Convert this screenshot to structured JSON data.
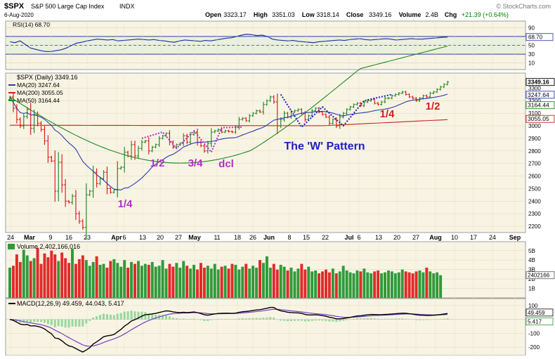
{
  "header": {
    "symbol": "$SPX",
    "name": "S&P 500 Large Cap Index",
    "exchange": "INDX",
    "date": "6-Aug-2020",
    "open_label": "Open",
    "open": "3323.17",
    "high_label": "High",
    "high": "3351.03",
    "low_label": "Low",
    "low": "3318.14",
    "close_label": "Close",
    "close": "3349.16",
    "volume_label": "Volume",
    "volume": "2.4B",
    "chg_label": "Chg",
    "chg": "+21.39 (+0.64%)",
    "watermark": "© StockCharts.com",
    "chg_color": "#008000"
  },
  "colors": {
    "panel_bg": "#f8f4e4",
    "ma20": "#2b3bb0",
    "ma50": "#1f8a1f",
    "ma200": "#d02020",
    "up": "#2e8b2e",
    "down": "#e02020",
    "annot_purple": "#b030c8",
    "annot_red": "#d02020",
    "annot_blue": "#2020c0"
  },
  "chart_data": [
    {
      "type": "line",
      "title": "RSI(14) 68.70",
      "ylim": [
        0,
        100
      ],
      "yticks": [
        90,
        70,
        50,
        30,
        10
      ],
      "reference_lines": [
        70,
        30
      ],
      "current_label": "68.70",
      "series": [
        {
          "name": "RSI(14)",
          "values": [
            58,
            56,
            60,
            52,
            44,
            41,
            38,
            36,
            36,
            38,
            40,
            44,
            50,
            55,
            57,
            60,
            62,
            64,
            63,
            62,
            63,
            60,
            61,
            62,
            63,
            64,
            63,
            62,
            63,
            61,
            60,
            58,
            57,
            60,
            62,
            61,
            60,
            59,
            61,
            60,
            62,
            64,
            66,
            67,
            70,
            73,
            75,
            74,
            72,
            73,
            70,
            64,
            62,
            61,
            60,
            61,
            59,
            58,
            57,
            56,
            58,
            59,
            60,
            61,
            62,
            61,
            63,
            64,
            65,
            63,
            62,
            63,
            64,
            65,
            64,
            62,
            63,
            64,
            65,
            64,
            64,
            65,
            66,
            67,
            68,
            68.7
          ]
        }
      ]
    },
    {
      "type": "line",
      "title": "$SPX (Daily) 3349.16",
      "ylim": [
        2150,
        3420
      ],
      "yticks": [
        3300,
        3200,
        3100,
        3000,
        2900,
        2800,
        2700,
        2600,
        2500,
        2400,
        2300,
        2200
      ],
      "xticks": [
        "24",
        "Mar",
        "9",
        "16",
        "23",
        "Apr",
        "6",
        "13",
        "20",
        "27",
        "May",
        "11",
        "18",
        "26",
        "Jun",
        "8",
        "15",
        "22",
        "Jul",
        "6",
        "13",
        "20",
        "27",
        "Aug",
        "10",
        "17",
        "24",
        "Sep"
      ],
      "close": [
        3230,
        3140,
        3050,
        3000,
        3075,
        3130,
        2980,
        3090,
        3020,
        2970,
        2880,
        2750,
        2720,
        2480,
        2710,
        2530,
        2400,
        2390,
        2440,
        2300,
        2240,
        2190,
        2450,
        2480,
        2630,
        2540,
        2580,
        2630,
        2500,
        2470,
        2490,
        2660,
        2670,
        2790,
        2760,
        2850,
        2760,
        2820,
        2870,
        2880,
        2800,
        2830,
        2850,
        2900,
        2920,
        2940,
        2870,
        2830,
        2850,
        2860,
        2920,
        2870,
        2930,
        2950,
        2870,
        2840,
        2800,
        2860,
        2950,
        2960,
        2970,
        2950,
        2960,
        2955,
        2950,
        2990,
        3050,
        3060,
        3040,
        3080,
        3100,
        3120,
        3110,
        3170,
        3200,
        3230,
        3190,
        3000,
        3050,
        3100,
        3070,
        3110,
        3120,
        3130,
        3100,
        3050,
        3080,
        3120,
        3140,
        3110,
        3090,
        3070,
        3020,
        3050,
        3000,
        3070,
        3100,
        3130,
        3150,
        3170,
        3180,
        3160,
        3190,
        3200,
        3210,
        3180,
        3170,
        3190,
        3220,
        3220,
        3240,
        3250,
        3260,
        3270,
        3250,
        3230,
        3220,
        3200,
        3220,
        3240,
        3230,
        3260,
        3270,
        3290,
        3310,
        3330,
        3349.16
      ],
      "series": [
        {
          "name": "MA(20)",
          "value": "3247.64"
        },
        {
          "name": "MA(200)",
          "value": "3055.05"
        },
        {
          "name": "MA(50)",
          "value": "3164.44"
        }
      ],
      "price_labels": {
        "last": "3349.16",
        "ma20": "3247.64",
        "ma50": "3164.44",
        "ma200": "3055.05"
      },
      "annotations": [
        {
          "text": "1/4",
          "color": "purple"
        },
        {
          "text": "1/2",
          "color": "purple"
        },
        {
          "text": "3/4",
          "color": "purple"
        },
        {
          "text": "dcl",
          "color": "purple"
        },
        {
          "text": "The 'W' Pattern",
          "color": "blue"
        },
        {
          "text": "1/4",
          "color": "red"
        },
        {
          "text": "1/2",
          "color": "red"
        }
      ]
    },
    {
      "type": "bar",
      "title": "Volume 2,402,166,016",
      "ylim": [
        0,
        5.8
      ],
      "yticks": [
        "5B",
        "4B",
        "3B",
        "2B",
        "1B"
      ],
      "current_label": "2402166",
      "values": [
        3.2,
        3.4,
        4.6,
        3.8,
        5.1,
        4.5,
        3.9,
        4.2,
        5.3,
        3.6,
        4.7,
        4.3,
        5.0,
        4.6,
        3.9,
        4.8,
        4.2,
        3.7,
        5.2,
        3.6,
        4.1,
        4.5,
        4.0,
        3.4,
        3.8,
        4.4,
        3.5,
        3.6,
        3.2,
        3.9,
        4.1,
        3.7,
        3.3,
        4.0,
        3.2,
        3.8,
        3.6,
        3.9,
        3.4,
        3.6,
        3.5,
        3.8,
        3.3,
        3.4,
        4.0,
        3.1,
        3.6,
        3.3,
        3.7,
        3.2,
        3.9,
        3.4,
        3.1,
        3.5,
        3.0,
        3.7,
        3.2,
        3.4,
        3.1,
        3.6,
        3.0,
        3.3,
        3.4,
        3.1,
        3.6,
        3.5,
        3.0,
        3.3,
        3.6,
        3.1,
        3.4,
        3.2,
        4.0,
        3.7,
        4.4,
        3.2,
        3.6,
        3.0,
        3.5,
        3.3,
        2.9,
        3.2,
        2.8,
        3.1,
        3.6,
        3.0,
        3.3,
        2.8,
        2.9,
        2.6,
        2.8,
        3.0,
        2.7,
        3.1,
        2.6,
        2.8,
        3.4,
        2.9,
        2.7,
        2.6,
        2.9,
        2.8,
        3.1,
        2.7,
        2.6,
        2.8,
        2.9,
        2.6,
        2.7,
        2.9,
        2.8,
        2.6,
        2.7,
        3.0,
        2.8,
        2.7,
        2.6,
        2.8,
        2.9,
        2.7,
        3.2,
        2.8,
        2.6,
        2.7,
        2.4
      ]
    },
    {
      "type": "line",
      "title": "MACD(12,26,9) 49.459, 44.043, 5.417",
      "ylim": [
        -260,
        150
      ],
      "yticks": [
        100,
        -100,
        -200
      ],
      "current_labels": [
        "49.459",
        "5.417"
      ]
    }
  ]
}
